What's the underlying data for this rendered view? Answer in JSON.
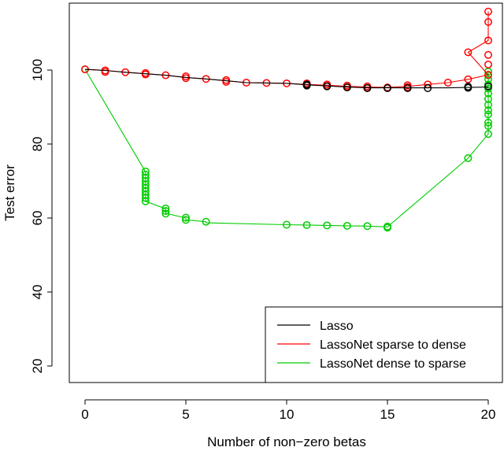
{
  "chart_data": {
    "type": "scatter",
    "xlabel": "Number of non−zero betas",
    "ylabel": "Test error",
    "xlim": [
      -1,
      21
    ],
    "ylim": [
      16,
      120
    ],
    "xticks": [
      "0",
      "5",
      "10",
      "15",
      "20"
    ],
    "xtick_values": [
      0,
      5,
      10,
      15,
      20
    ],
    "yticks": [
      "20",
      "40",
      "60",
      "80",
      "100"
    ],
    "ytick_values": [
      20,
      40,
      60,
      80,
      100
    ],
    "grid": false,
    "legend_position": "bottom-right",
    "series": [
      {
        "name": "Lasso",
        "color": "#000000",
        "line": [
          [
            0,
            100.2
          ],
          [
            1,
            99.9
          ],
          [
            2,
            99.4
          ],
          [
            3,
            99.0
          ],
          [
            4,
            98.6
          ],
          [
            5,
            98.0
          ],
          [
            6,
            97.6
          ],
          [
            7,
            97.1
          ],
          [
            8,
            96.6
          ],
          [
            9,
            96.5
          ],
          [
            10,
            96.4
          ],
          [
            11,
            96.0
          ],
          [
            12,
            95.7
          ],
          [
            13,
            95.4
          ],
          [
            14,
            95.2
          ],
          [
            15,
            95.2
          ],
          [
            16,
            95.2
          ],
          [
            17,
            95.2
          ],
          [
            18,
            95.2
          ],
          [
            19,
            95.3
          ],
          [
            20,
            95.4
          ]
        ],
        "points": [
          [
            11,
            96.1
          ],
          [
            11,
            95.8
          ],
          [
            12,
            95.6
          ],
          [
            13,
            95.3
          ],
          [
            14,
            95.1
          ],
          [
            15,
            95.1
          ],
          [
            16,
            95.1
          ],
          [
            17,
            95.1
          ],
          [
            19,
            95.2
          ],
          [
            19,
            95.5
          ],
          [
            20,
            95.6
          ]
        ]
      },
      {
        "name": "LassoNet sparse to dense",
        "color": "#ff0000",
        "line": [
          [
            0,
            100.2
          ],
          [
            1,
            99.9
          ],
          [
            2,
            99.4
          ],
          [
            3,
            99.0
          ],
          [
            4,
            98.6
          ],
          [
            5,
            98.0
          ],
          [
            6,
            97.6
          ],
          [
            7,
            97.1
          ],
          [
            8,
            96.6
          ],
          [
            9,
            96.5
          ],
          [
            10,
            96.4
          ],
          [
            11,
            96.1
          ],
          [
            12,
            95.9
          ],
          [
            13,
            95.6
          ],
          [
            14,
            95.4
          ],
          [
            15,
            95.3
          ],
          [
            16,
            95.6
          ],
          [
            17,
            96.1
          ],
          [
            18,
            96.6
          ],
          [
            19,
            97.5
          ],
          [
            20,
            98.7
          ],
          [
            19,
            104.8
          ],
          [
            20,
            108.0
          ],
          [
            20,
            113.0
          ],
          [
            20,
            115.8
          ]
        ],
        "points": [
          [
            0,
            100.2
          ],
          [
            1,
            99.9
          ],
          [
            1,
            99.5
          ],
          [
            2,
            99.4
          ],
          [
            3,
            99.2
          ],
          [
            3,
            98.8
          ],
          [
            4,
            98.6
          ],
          [
            5,
            98.3
          ],
          [
            5,
            97.8
          ],
          [
            6,
            97.6
          ],
          [
            7,
            97.3
          ],
          [
            7,
            96.8
          ],
          [
            8,
            96.6
          ],
          [
            9,
            96.5
          ],
          [
            10,
            96.4
          ],
          [
            11,
            96.4
          ],
          [
            11,
            96.0
          ],
          [
            12,
            96.1
          ],
          [
            12,
            95.7
          ],
          [
            13,
            95.8
          ],
          [
            13,
            95.4
          ],
          [
            14,
            95.6
          ],
          [
            14,
            95.2
          ],
          [
            15,
            95.3
          ],
          [
            16,
            95.9
          ],
          [
            16,
            95.4
          ],
          [
            17,
            96.1
          ],
          [
            18,
            96.6
          ],
          [
            19,
            97.5
          ],
          [
            19,
            104.8
          ],
          [
            20,
            98.7
          ],
          [
            20,
            101.5
          ],
          [
            20,
            104.1
          ],
          [
            20,
            108.0
          ],
          [
            20,
            113.0
          ],
          [
            20,
            115.8
          ]
        ]
      },
      {
        "name": "LassoNet dense to sparse",
        "color": "#00cc00",
        "line": [
          [
            0,
            100.2
          ],
          [
            3,
            72.5
          ],
          [
            3,
            64.5
          ],
          [
            4,
            62.5
          ],
          [
            4,
            61.3
          ],
          [
            5,
            60.0
          ],
          [
            5,
            59.5
          ],
          [
            6,
            59.0
          ],
          [
            6,
            58.7
          ],
          [
            10,
            58.2
          ],
          [
            11,
            58.1
          ],
          [
            12,
            58.0
          ],
          [
            13,
            57.9
          ],
          [
            14,
            57.8
          ],
          [
            15,
            57.6
          ],
          [
            19,
            76.2
          ],
          [
            20,
            82.7
          ],
          [
            20,
            99.8
          ]
        ],
        "points": [
          [
            0,
            100.2
          ],
          [
            3,
            72.6
          ],
          [
            3,
            71.7
          ],
          [
            3,
            70.8
          ],
          [
            3,
            69.9
          ],
          [
            3,
            69.0
          ],
          [
            3,
            68.1
          ],
          [
            3,
            67.2
          ],
          [
            3,
            66.3
          ],
          [
            3,
            65.4
          ],
          [
            3,
            64.5
          ],
          [
            4,
            62.6
          ],
          [
            4,
            61.9
          ],
          [
            4,
            61.2
          ],
          [
            5,
            60.1
          ],
          [
            5,
            59.5
          ],
          [
            6,
            59.0
          ],
          [
            10,
            58.2
          ],
          [
            11,
            58.1
          ],
          [
            12,
            58.0
          ],
          [
            13,
            57.9
          ],
          [
            14,
            57.8
          ],
          [
            15,
            57.7
          ],
          [
            15,
            57.4
          ],
          [
            19,
            76.2
          ],
          [
            20,
            82.7
          ],
          [
            20,
            84.9
          ],
          [
            20,
            85.8
          ],
          [
            20,
            88.0
          ],
          [
            20,
            89.1
          ],
          [
            20,
            90.6
          ],
          [
            20,
            92.2
          ],
          [
            20,
            93.7
          ],
          [
            20,
            95.0
          ],
          [
            20,
            96.1
          ],
          [
            20,
            97.5
          ],
          [
            20,
            98.6
          ],
          [
            20,
            99.6
          ]
        ]
      }
    ]
  }
}
